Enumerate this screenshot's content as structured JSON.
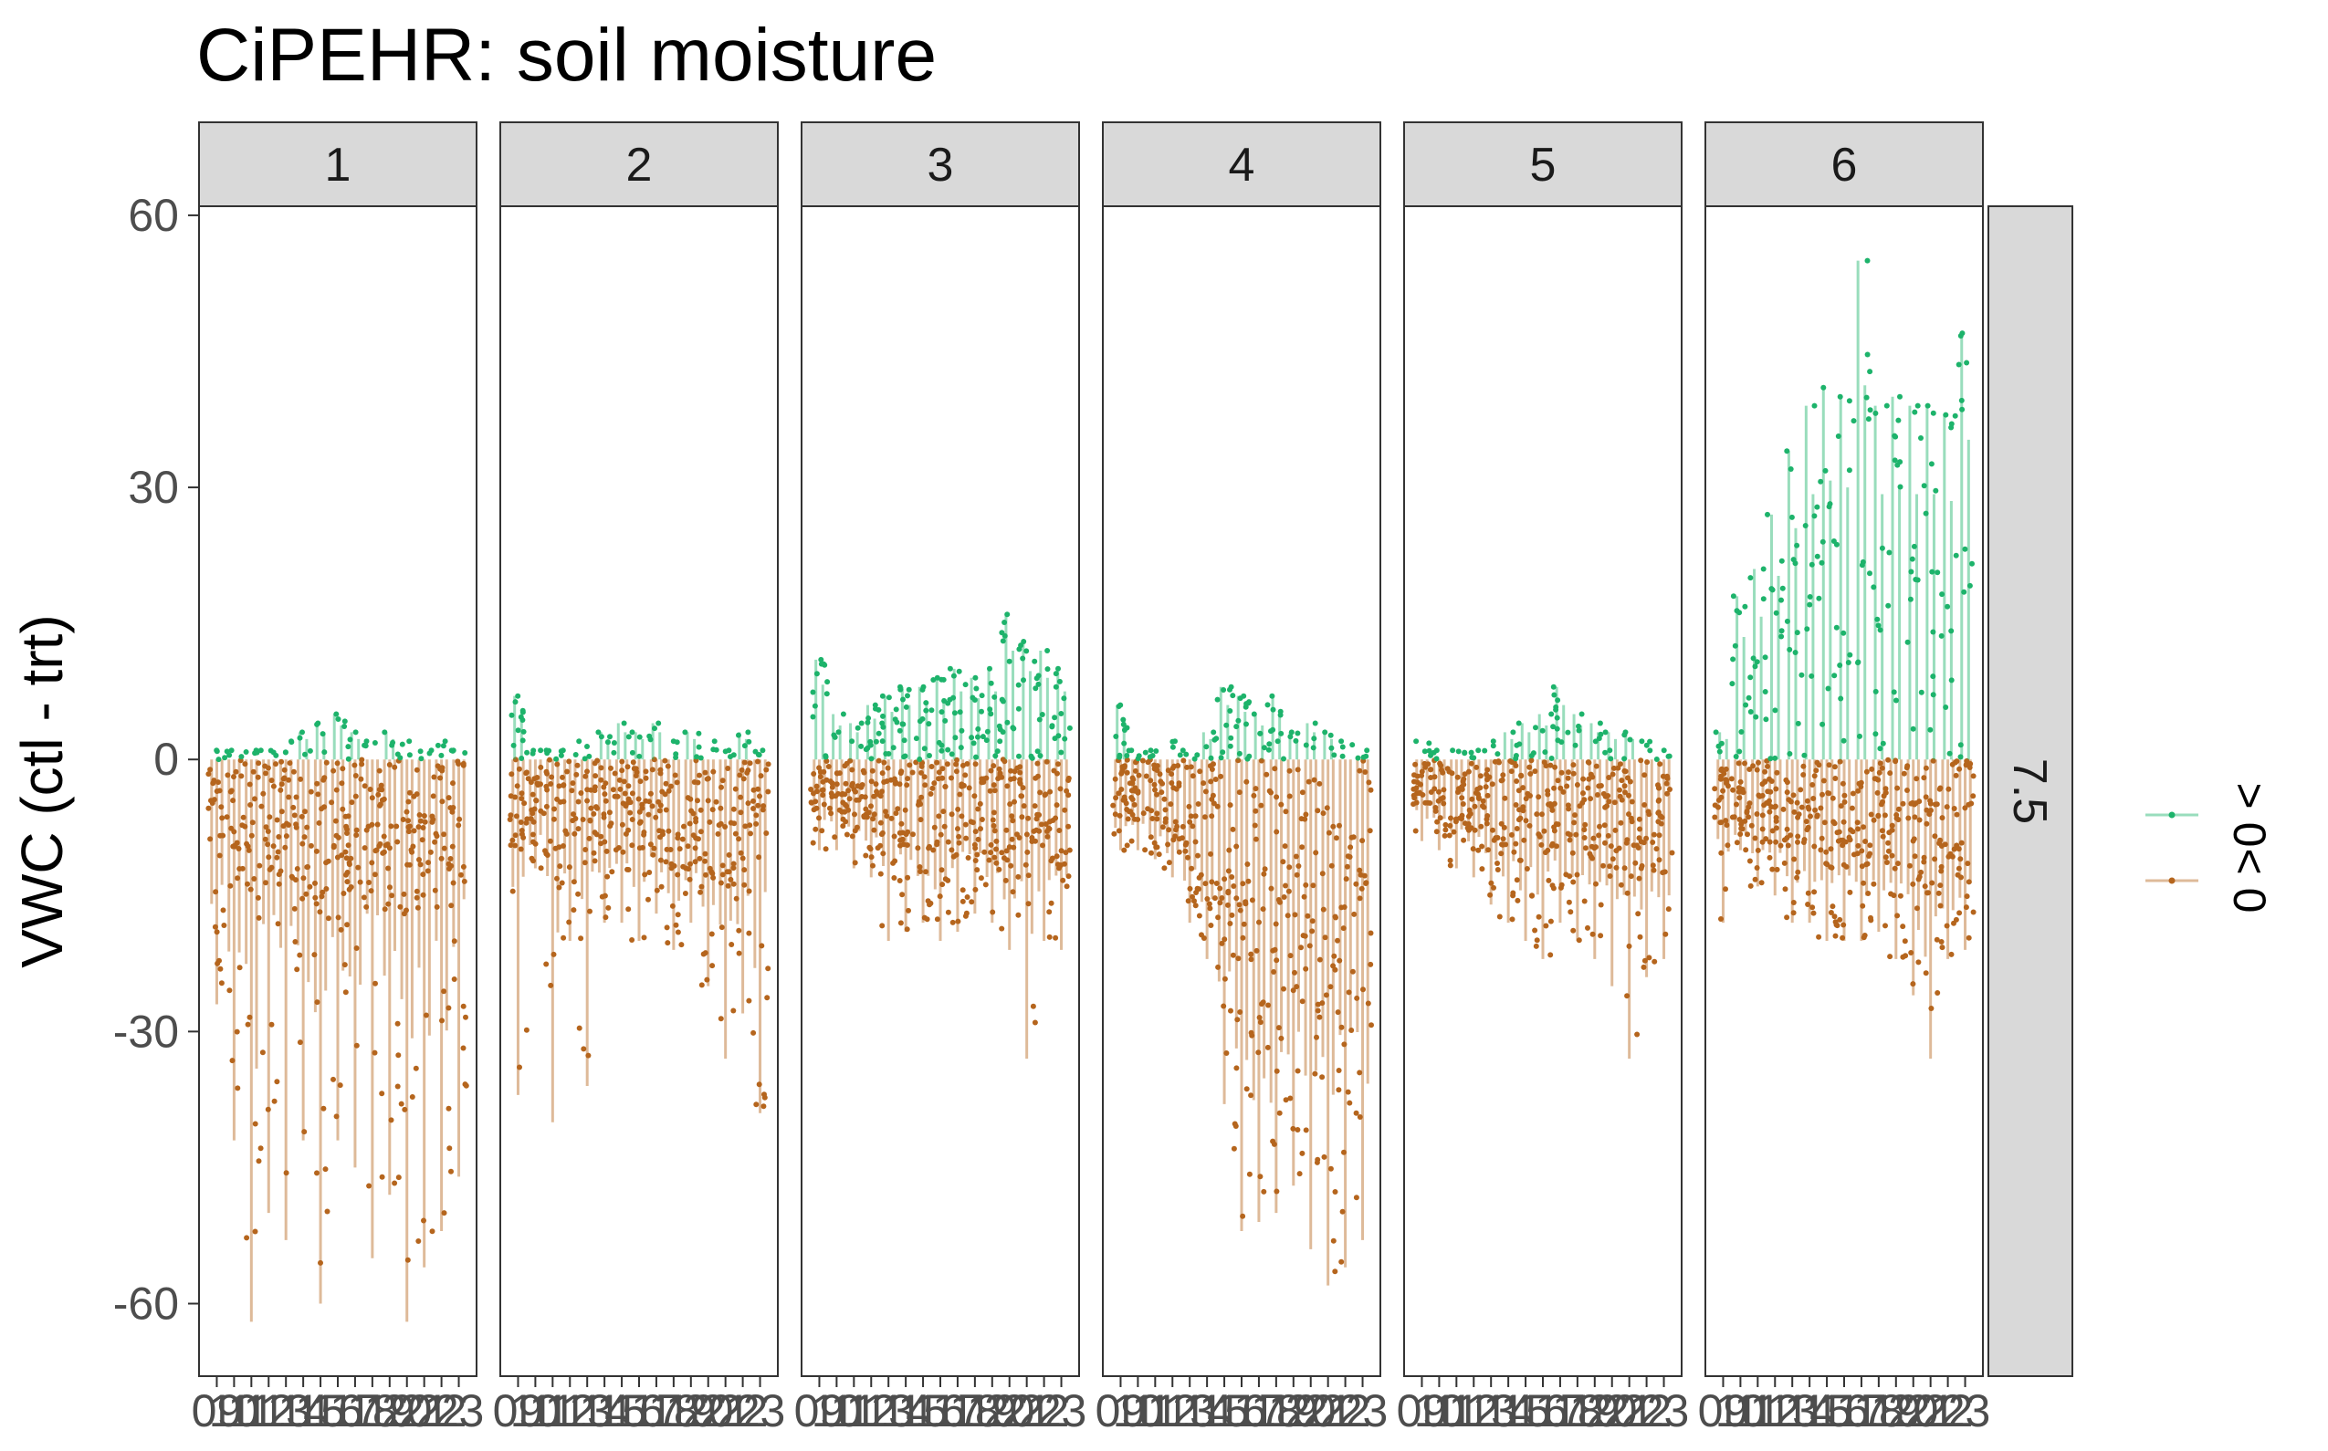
{
  "chart_data": {
    "type": "scatter",
    "title": "CiPEHR: soil moisture",
    "xlabel": "",
    "ylabel": "VWC (ctl - trt)",
    "ylim": [
      -68,
      61
    ],
    "yticks": [
      60,
      30,
      0,
      -30,
      -60
    ],
    "ytick_labels": [
      "60",
      "30",
      "0",
      "-30",
      "-60"
    ],
    "x_tick_labels": [
      "09",
      "10",
      "11",
      "12",
      "13",
      "14",
      "15",
      "16",
      "17",
      "18",
      "19",
      "20",
      "21",
      "22",
      "23"
    ],
    "facet_columns": [
      "1",
      "2",
      "3",
      "4",
      "5",
      "6"
    ],
    "facet_row_label": "7.5",
    "grid": false,
    "legend_position": "right",
    "legend": [
      {
        "label": "> 0",
        "color": "#1db36b"
      },
      {
        "label": "< 0",
        "color": "#b5651d"
      }
    ],
    "colors": {
      "positive": "#1db36b",
      "negative": "#b5651d"
    },
    "panels": [
      {
        "facet": "1",
        "pos_max": [
          1,
          1,
          1,
          1,
          2,
          3,
          4,
          5,
          3,
          2,
          3,
          2,
          1,
          2,
          1
        ],
        "neg_min": [
          -27,
          -42,
          -62,
          -50,
          -53,
          -42,
          -60,
          -42,
          -45,
          -55,
          -48,
          -62,
          -56,
          -52,
          -46
        ],
        "neg_typ": [
          -12,
          -14,
          -16,
          -15,
          -15,
          -16,
          -17,
          -16,
          -16,
          -17,
          -16,
          -18,
          -17,
          -16,
          -15
        ]
      },
      {
        "facet": "2",
        "pos_max": [
          7,
          1,
          1,
          1,
          2,
          3,
          4,
          3,
          4,
          2,
          3,
          2,
          1,
          3,
          1
        ],
        "neg_min": [
          -37,
          -12,
          -40,
          -20,
          -36,
          -18,
          -18,
          -20,
          -17,
          -21,
          -18,
          -25,
          -33,
          -28,
          -39
        ],
        "neg_typ": [
          -10,
          -8,
          -12,
          -10,
          -12,
          -11,
          -10,
          -11,
          -10,
          -12,
          -11,
          -13,
          -14,
          -13,
          -14
        ]
      },
      {
        "facet": "3",
        "pos_max": [
          11,
          5,
          4,
          6,
          7,
          8,
          8,
          9,
          10,
          9,
          10,
          16,
          13,
          12,
          10
        ],
        "neg_min": [
          -10,
          -10,
          -12,
          -13,
          -20,
          -19,
          -18,
          -20,
          -19,
          -17,
          -18,
          -21,
          -33,
          -20,
          -21
        ],
        "neg_typ": [
          -5,
          -6,
          -7,
          -8,
          -9,
          -10,
          -11,
          -11,
          -10,
          -10,
          -11,
          -12,
          -13,
          -12,
          -12
        ]
      },
      {
        "facet": "4",
        "pos_max": [
          6,
          1,
          1,
          2,
          1,
          3,
          8,
          7,
          5,
          7,
          3,
          4,
          3,
          2,
          1
        ],
        "neg_min": [
          -10,
          -10,
          -11,
          -13,
          -18,
          -22,
          -38,
          -52,
          -51,
          -50,
          -47,
          -54,
          -58,
          -56,
          -53
        ],
        "neg_typ": [
          -6,
          -7,
          -8,
          -9,
          -12,
          -15,
          -22,
          -30,
          -32,
          -30,
          -28,
          -30,
          -32,
          -30,
          -28
        ]
      },
      {
        "facet": "5",
        "pos_max": [
          2,
          1,
          1,
          1,
          2,
          3,
          4,
          5,
          8,
          5,
          4,
          3,
          3,
          2,
          1
        ],
        "neg_min": [
          -9,
          -10,
          -12,
          -13,
          -16,
          -18,
          -20,
          -22,
          -18,
          -20,
          -22,
          -25,
          -33,
          -24,
          -22
        ],
        "neg_typ": [
          -5,
          -6,
          -7,
          -8,
          -9,
          -10,
          -11,
          -11,
          -10,
          -11,
          -12,
          -13,
          -14,
          -13,
          -12
        ]
      },
      {
        "facet": "6",
        "pos_max": [
          3,
          18,
          21,
          27,
          34,
          39,
          41,
          40,
          55,
          39,
          40,
          39,
          39,
          38,
          47
        ],
        "neg_min": [
          -18,
          -10,
          -14,
          -15,
          -18,
          -18,
          -20,
          -20,
          -20,
          -19,
          -22,
          -26,
          -33,
          -22,
          -21
        ],
        "neg_typ": [
          -8,
          -8,
          -9,
          -10,
          -11,
          -12,
          -12,
          -12,
          -12,
          -12,
          -13,
          -14,
          -15,
          -14,
          -13
        ]
      }
    ]
  }
}
